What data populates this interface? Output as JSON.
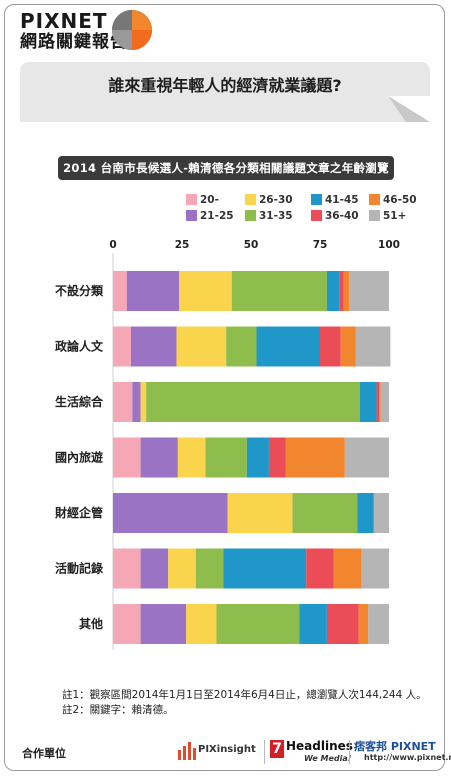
{
  "brand": {
    "title": "PIXNET",
    "subtitle": "網路關鍵報告"
  },
  "question": "誰來重視年輕人的經濟就業議題?",
  "colors": {
    "20-": "#f6a7b5",
    "21-25": "#9a73c4",
    "26-30": "#fbd44e",
    "31-35": "#8fbd4d",
    "41-45": "#1f97c9",
    "36-40": "#ea4d58",
    "46-50": "#f2862f",
    "51+": "#b5b5b5"
  },
  "chart_data": {
    "type": "bar",
    "orientation": "horizontal",
    "stacked": true,
    "title": "2014 台南市長候選人-賴清德各分類相關議題文章之年齡瀏覽比",
    "xlim": [
      0,
      100
    ],
    "xticks": [
      0,
      25,
      50,
      75,
      100
    ],
    "legend_position": "top",
    "grid": false,
    "categories": [
      "不設分類",
      "政論人文",
      "生活綜合",
      "國內旅遊",
      "財經企管",
      "活動記錄",
      "其他"
    ],
    "series": [
      {
        "name": "20-",
        "values": [
          5,
          6.5,
          7,
          10,
          0,
          10,
          10
        ]
      },
      {
        "name": "21-25",
        "values": [
          19,
          16.5,
          3,
          13.5,
          41.5,
          10,
          16.5
        ]
      },
      {
        "name": "26-30",
        "values": [
          19,
          18,
          2,
          10,
          23.5,
          10,
          11
        ]
      },
      {
        "name": "31-35",
        "values": [
          34.5,
          11,
          77.5,
          15,
          23.5,
          10,
          30
        ]
      },
      {
        "name": "36-40",
        "values": [
          0,
          0,
          0,
          0,
          0,
          0,
          0
        ]
      },
      {
        "name": "41-45",
        "values": [
          4.5,
          23,
          6,
          8,
          6,
          30,
          10
        ]
      },
      {
        "name": "36-40",
        "values": [
          1.5,
          7.5,
          1,
          6,
          0,
          10,
          11.5
        ]
      },
      {
        "name": "46-50",
        "values": [
          2,
          5.5,
          0.5,
          21.5,
          0,
          10,
          3.5
        ]
      },
      {
        "name": "51+",
        "values": [
          14.5,
          12.5,
          3,
          16,
          5.5,
          10,
          7.5
        ]
      }
    ],
    "legend": [
      "20-",
      "26-30",
      "41-45",
      "46-50",
      "21-25",
      "31-35",
      "36-40",
      "51+"
    ]
  },
  "notes": {
    "note1": "註1：觀察區間2014年1月1日至2014年6月4日止，總瀏覽人次144,244 人。",
    "note2": "註2：關鍵字：賴清德。"
  },
  "footer": {
    "label": "合作單位",
    "logo1": "PIXinsight",
    "logo2": "Headlines",
    "logo2_num": "7",
    "logo2_tag": "We Media!",
    "logo3": "痞客邦 PIXNET",
    "logo3_url": "http://www.pixnet.net/"
  }
}
